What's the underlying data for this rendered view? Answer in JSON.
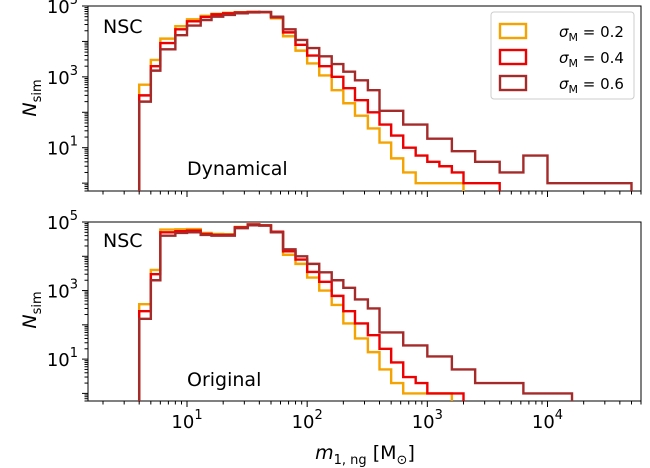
{
  "chart_data": [
    {
      "type": "step",
      "panel_label": "NSC",
      "annotation": "Dynamical",
      "xlabel_main": "m",
      "xlabel_sub": "1, ng",
      "xlabel_unit_open": " [M",
      "xlabel_unit_sym": "⊙",
      "xlabel_unit_close": "]",
      "ylabel_main": "N",
      "ylabel_sub": "sim",
      "xscale": "log",
      "yscale": "log",
      "xlim": [
        1.5,
        60000
      ],
      "ylim": [
        0.6,
        100000
      ],
      "x_ticks": [
        {
          "base": "10",
          "exp": "1",
          "v": 10
        },
        {
          "base": "10",
          "exp": "2",
          "v": 100
        },
        {
          "base": "10",
          "exp": "3",
          "v": 1000
        },
        {
          "base": "10",
          "exp": "4",
          "v": 10000
        }
      ],
      "y_ticks": [
        {
          "base": "10",
          "exp": "1",
          "v": 10
        },
        {
          "base": "10",
          "exp": "3",
          "v": 1000
        },
        {
          "base": "10",
          "exp": "5",
          "v": 100000
        }
      ],
      "legend_position": "top-right",
      "series": [
        {
          "name_sym": "σ",
          "name_sub": "M",
          "name_val": " = 0.2",
          "color": "#f5a300",
          "edges": [
            4,
            5,
            6,
            8,
            10,
            13,
            16,
            20,
            25,
            32,
            40,
            50,
            63,
            80,
            100,
            126,
            160,
            200,
            250,
            320,
            400,
            500,
            630,
            800,
            1000,
            1260,
            1600,
            2000
          ],
          "counts": [
            600,
            3000,
            12000,
            27000,
            42000,
            53000,
            60000,
            64000,
            67000,
            68000,
            67000,
            45000,
            14000,
            5500,
            2400,
            1100,
            420,
            180,
            80,
            35,
            14,
            5,
            2,
            1,
            1,
            1,
            1
          ]
        },
        {
          "name_sym": "σ",
          "name_sub": "M",
          "name_val": " = 0.4",
          "color": "#ee0000",
          "edges": [
            4,
            5,
            6,
            8,
            10,
            13,
            16,
            20,
            25,
            32,
            40,
            50,
            63,
            80,
            100,
            126,
            160,
            200,
            250,
            320,
            400,
            500,
            630,
            800,
            1000,
            1260,
            1600,
            2000,
            2500,
            3200,
            4000
          ],
          "counts": [
            300,
            2000,
            9000,
            22000,
            37000,
            49000,
            58000,
            62000,
            66000,
            68000,
            67000,
            48000,
            18000,
            8000,
            4000,
            2000,
            1000,
            480,
            220,
            100,
            45,
            22,
            10,
            6,
            4,
            3,
            2,
            1,
            1,
            1
          ]
        },
        {
          "name_sym": "σ",
          "name_sub": "M",
          "name_val": " = 0.6",
          "color": "#a52a2a",
          "edges": [
            4,
            5,
            6,
            8,
            10,
            13,
            16,
            20,
            25,
            32,
            40,
            50,
            63,
            80,
            100,
            126,
            160,
            200,
            250,
            320,
            400,
            630,
            1000,
            1600,
            2500,
            4000,
            6300,
            10000,
            16000,
            25000,
            40000,
            50000
          ],
          "counts": [
            200,
            1500,
            6000,
            15000,
            28000,
            40000,
            50000,
            56000,
            62000,
            66000,
            68000,
            50000,
            22000,
            11000,
            6500,
            3800,
            2300,
            1400,
            800,
            420,
            110,
            45,
            18,
            8,
            4,
            2,
            6,
            1,
            1,
            1,
            1
          ]
        }
      ]
    },
    {
      "type": "step",
      "panel_label": "NSC",
      "annotation": "Original",
      "xscale": "log",
      "yscale": "log",
      "xlim": [
        1.5,
        60000
      ],
      "ylim": [
        0.6,
        100000
      ],
      "x_ticks": [
        {
          "base": "10",
          "exp": "1",
          "v": 10
        },
        {
          "base": "10",
          "exp": "2",
          "v": 100
        },
        {
          "base": "10",
          "exp": "3",
          "v": 1000
        },
        {
          "base": "10",
          "exp": "4",
          "v": 10000
        }
      ],
      "y_ticks": [
        {
          "base": "10",
          "exp": "1",
          "v": 10
        },
        {
          "base": "10",
          "exp": "3",
          "v": 1000
        },
        {
          "base": "10",
          "exp": "5",
          "v": 100000
        }
      ],
      "series": [
        {
          "name": "0.2",
          "color": "#f5a300",
          "edges": [
            4,
            5,
            6,
            8,
            10,
            13,
            16,
            20,
            25,
            32,
            40,
            50,
            63,
            80,
            100,
            126,
            160,
            200,
            250,
            320,
            400,
            500,
            630,
            800,
            1000,
            1260,
            1600
          ],
          "counts": [
            400,
            4000,
            60000,
            61000,
            62000,
            48000,
            45000,
            44000,
            72000,
            85000,
            80000,
            50000,
            11000,
            6000,
            2400,
            1000,
            380,
            110,
            40,
            16,
            5,
            2,
            1,
            1,
            1,
            1
          ]
        },
        {
          "name": "0.4",
          "color": "#ee0000",
          "edges": [
            4,
            5,
            6,
            8,
            10,
            13,
            16,
            20,
            25,
            32,
            40,
            50,
            63,
            80,
            100,
            126,
            160,
            200,
            250,
            320,
            400,
            500,
            630,
            800,
            1000,
            1260,
            1600,
            2000
          ],
          "counts": [
            250,
            3000,
            50000,
            54000,
            56000,
            45000,
            42000,
            42000,
            70000,
            85000,
            80000,
            52000,
            14000,
            8000,
            3500,
            1800,
            700,
            250,
            110,
            50,
            20,
            8,
            3,
            2,
            1,
            1,
            1
          ]
        },
        {
          "name": "0.6",
          "color": "#a52a2a",
          "edges": [
            4,
            5,
            6,
            8,
            10,
            13,
            16,
            20,
            25,
            32,
            40,
            50,
            63,
            80,
            100,
            126,
            160,
            200,
            250,
            320,
            400,
            630,
            1000,
            1600,
            2500,
            4000,
            6300,
            10000,
            16000
          ],
          "counts": [
            150,
            2000,
            40000,
            48000,
            50000,
            42000,
            40000,
            40000,
            66000,
            80000,
            78000,
            50000,
            16000,
            10000,
            6000,
            3400,
            2000,
            1200,
            550,
            300,
            60,
            25,
            12,
            5,
            2,
            2,
            1,
            1
          ]
        }
      ]
    }
  ]
}
